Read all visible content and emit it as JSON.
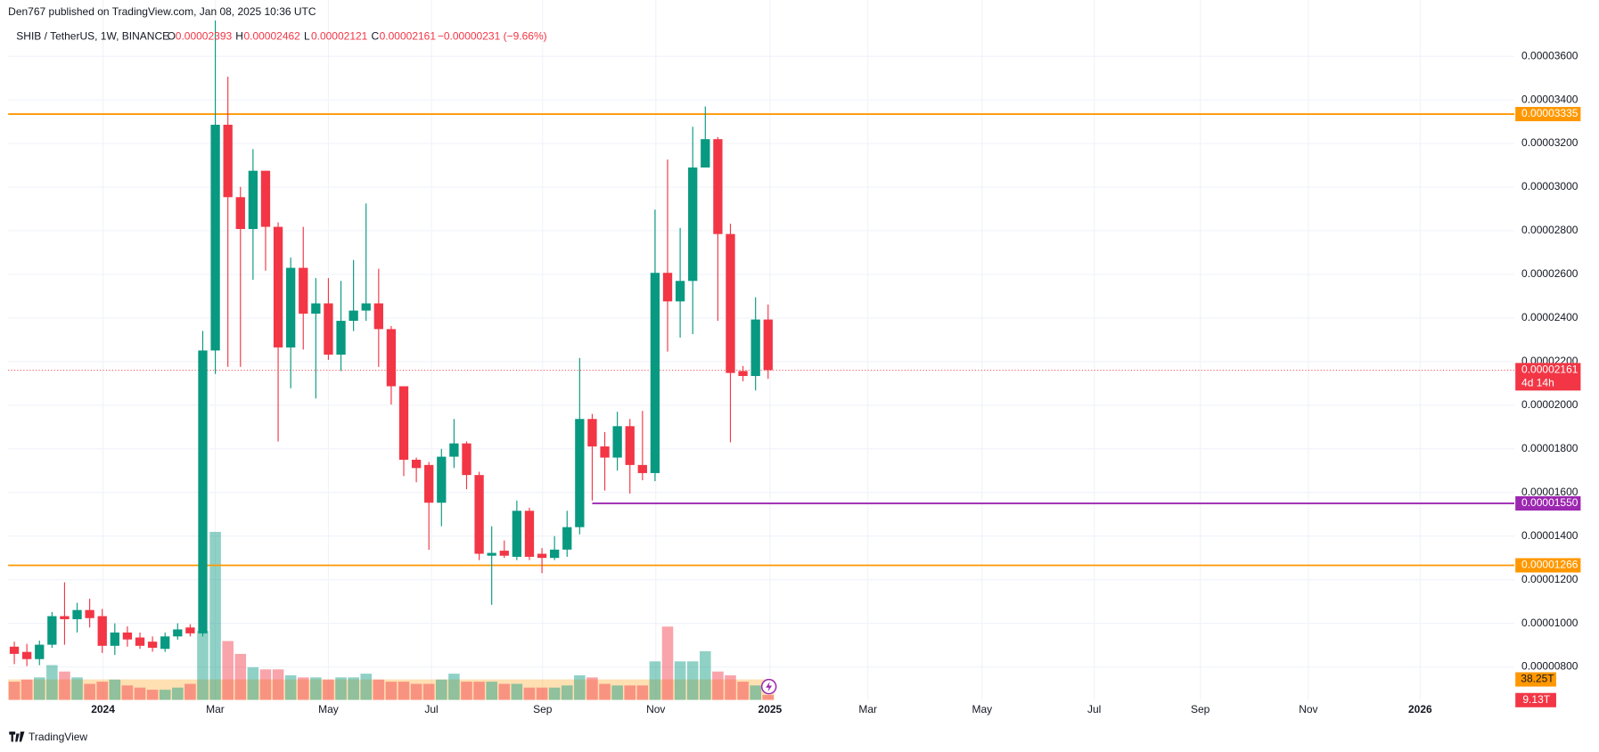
{
  "chart_data": {
    "type": "candlestick",
    "published": "Den767 published on TradingView.com, Jan 08, 2025 10:36 UTC",
    "title": "SHIB / TetherUS, 1W, BINANCE",
    "legend": {
      "o": "O",
      "h": "H",
      "l": "L",
      "c": "C",
      "change": "−0.00000231 (−9.66%)"
    },
    "up_color": "#089981",
    "down_color": "#f23645",
    "categories": [
      null,
      null,
      null,
      null,
      null,
      null,
      null,
      null,
      null,
      null,
      null,
      null,
      null,
      null,
      null,
      null,
      null,
      null,
      null,
      null,
      null,
      null,
      null,
      null,
      null,
      null,
      null,
      null,
      null,
      null,
      null,
      null,
      null,
      null,
      null,
      null,
      null,
      null,
      null,
      null,
      null,
      null,
      null,
      null,
      null,
      null,
      null,
      null,
      null,
      null,
      null,
      null,
      null,
      null,
      null,
      null,
      null,
      null,
      null,
      null,
      null
    ],
    "open": [
      8.93e-06,
      8.69e-06,
      8.36e-06,
      9.02e-06,
      1.033e-05,
      1.019e-05,
      1.061e-05,
      1.033e-05,
      8.97e-06,
      9.58e-06,
      9.35e-06,
      9.16e-06,
      8.83e-06,
      9.4e-06,
      9.81e-06,
      9.54e-06,
      2.251e-05,
      3.286e-05,
      2.954e-05,
      2.808e-05,
      3.075e-05,
      2.818e-05,
      2.265e-05,
      2.63e-05,
      2.42e-05,
      2.467e-05,
      2.232e-05,
      2.387e-05,
      2.434e-05,
      2.467e-05,
      2.349e-05,
      2.087e-05,
      1.75e-05,
      1.726e-05,
      1.553e-05,
      1.764e-05,
      1.825e-05,
      1.68e-05,
      1.31e-05,
      1.333e-05,
      1.305e-05,
      1.516e-05,
      1.319e-05,
      1.3e-05,
      1.338e-05,
      1.441e-05,
      1.937e-05,
      1.811e-05,
      1.76e-05,
      1.904e-05,
      1.726e-05,
      1.689e-05,
      2.607e-05,
      2.476e-05,
      2.57e-05,
      3.09e-05,
      3.22e-05,
      2.785e-05,
      2.157e-05,
      2.134e-05,
      2.393e-05
    ],
    "high": [
      9.16e-06,
      9.06e-06,
      9.21e-06,
      1.052e-05,
      1.188e-05,
      1.094e-05,
      1.113e-05,
      1.066e-05,
      1e-05,
      9.86e-06,
      9.58e-06,
      9.4e-06,
      9.58e-06,
      1e-05,
      9.96e-06,
      2.341e-05,
      3.764e-05,
      3.506e-05,
      3.001e-05,
      3.174e-05,
      3.075e-05,
      2.838e-05,
      2.677e-05,
      2.818e-05,
      2.583e-05,
      2.583e-05,
      2.57e-05,
      2.666e-05,
      2.925e-05,
      2.626e-05,
      2.363e-05,
      2.087e-05,
      1.76e-05,
      1.74e-05,
      1.8e-05,
      1.937e-05,
      1.834e-05,
      1.695e-05,
      1.445e-05,
      1.38e-05,
      1.563e-05,
      1.53e-05,
      1.345e-05,
      1.4e-05,
      1.516e-05,
      2.217e-05,
      1.96e-05,
      1.877e-05,
      1.97e-05,
      1.937e-05,
      1.974e-05,
      2.897e-05,
      3.127e-05,
      2.813e-05,
      3.277e-05,
      3.37e-05,
      3.23e-05,
      2.832e-05,
      2.18e-05,
      2.495e-05,
      2.462e-05
    ],
    "low": [
      8.13e-06,
      8.04e-06,
      8.08e-06,
      8.88e-06,
      9.02e-06,
      9.58e-06,
      9.81e-06,
      8.64e-06,
      8.55e-06,
      8.93e-06,
      8.83e-06,
      8.7e-06,
      8.69e-06,
      9.25e-06,
      9.4e-06,
      9.4e-06,
      2.143e-05,
      2.176e-05,
      2.176e-05,
      2.575e-05,
      2.617e-05,
      1.834e-05,
      2.078e-05,
      2.255e-05,
      2.031e-05,
      2.208e-05,
      2.157e-05,
      2.34e-05,
      2.387e-05,
      2.176e-05,
      2.003e-05,
      1.675e-05,
      1.647e-05,
      1.337e-05,
      1.445e-05,
      1.712e-05,
      1.615e-05,
      1.29e-05,
      1.085e-05,
      1.3e-05,
      1.29e-05,
      1.29e-05,
      1.23e-05,
      1.29e-05,
      1.305e-05,
      1.408e-05,
      1.563e-05,
      1.609e-05,
      1.7e-05,
      1.595e-05,
      1.656e-05,
      1.652e-05,
      2.246e-05,
      2.31e-05,
      2.326e-05,
      3.09e-05,
      2.387e-05,
      1.83e-05,
      2.11e-05,
      2.068e-05,
      2.121e-05
    ],
    "close": [
      8.6e-06,
      8.36e-06,
      9.02e-06,
      1.033e-05,
      1.019e-05,
      1.061e-05,
      1.024e-05,
      8.97e-06,
      9.58e-06,
      9.26e-06,
      8.97e-06,
      8.88e-06,
      9.4e-06,
      9.72e-06,
      9.54e-06,
      2.251e-05,
      3.286e-05,
      2.954e-05,
      2.808e-05,
      3.075e-05,
      2.818e-05,
      2.265e-05,
      2.63e-05,
      2.42e-05,
      2.467e-05,
      2.232e-05,
      2.387e-05,
      2.434e-05,
      2.467e-05,
      2.349e-05,
      2.087e-05,
      1.75e-05,
      1.712e-05,
      1.553e-05,
      1.764e-05,
      1.825e-05,
      1.68e-05,
      1.319e-05,
      1.323e-05,
      1.31e-05,
      1.516e-05,
      1.305e-05,
      1.3e-05,
      1.338e-05,
      1.441e-05,
      1.937e-05,
      1.811e-05,
      1.76e-05,
      1.904e-05,
      1.726e-05,
      1.689e-05,
      2.607e-05,
      2.476e-05,
      2.57e-05,
      3.09e-05,
      3.22e-05,
      2.785e-05,
      2.148e-05,
      2.134e-05,
      2.393e-05,
      2.161e-05
    ],
    "countdown": "4d 14h",
    "xlim": [
      -0.49,
      119.4
    ],
    "xticks": [
      {
        "value": 7.06,
        "label": "2024"
      },
      {
        "value": 15.99,
        "label": "Mar"
      },
      {
        "value": 25.0,
        "label": "May"
      },
      {
        "value": 33.2,
        "label": "Jul"
      },
      {
        "value": 42.05,
        "label": "Sep"
      },
      {
        "value": 51.06,
        "label": "Nov"
      },
      {
        "value": 60.15,
        "label": "2025"
      },
      {
        "value": 67.94,
        "label": "Mar"
      },
      {
        "value": 77.03,
        "label": "May"
      },
      {
        "value": 85.96,
        "label": "Jul"
      },
      {
        "value": 94.4,
        "label": "Sep"
      },
      {
        "value": 103.0,
        "label": "Nov"
      },
      {
        "value": 111.9,
        "label": "2026"
      }
    ],
    "ylim": [
      6.49e-06,
      3.858e-05
    ],
    "yticks": [
      {
        "value": 3.6e-05,
        "label": "0.00003600"
      },
      {
        "value": 3.4e-05,
        "label": "0.00003400"
      },
      {
        "value": 3.2e-05,
        "label": "0.00003200"
      },
      {
        "value": 3e-05,
        "label": "0.00003000"
      },
      {
        "value": 2.8e-05,
        "label": "0.00002800"
      },
      {
        "value": 2.6e-05,
        "label": "0.00002600"
      },
      {
        "value": 2.4e-05,
        "label": "0.00002400"
      },
      {
        "value": 2.2e-05,
        "label": "0.00002200"
      },
      {
        "value": 2e-05,
        "label": "0.00002000"
      },
      {
        "value": 1.8e-05,
        "label": "0.00001800"
      },
      {
        "value": 1.6e-05,
        "label": "0.00001600"
      },
      {
        "value": 1.4e-05,
        "label": "0.00001400"
      },
      {
        "value": 1.2e-05,
        "label": "0.00001200"
      },
      {
        "value": 1e-05,
        "label": "0.00001000"
      },
      {
        "value": 8e-06,
        "label": "0.00000800"
      }
    ],
    "grid": true,
    "levels": [
      {
        "value": 3.335e-05,
        "label": "0.00003335",
        "color": "#ff9800"
      },
      {
        "value": 1.55e-05,
        "label": "0.00001550",
        "color": "#9c27b0"
      },
      {
        "value": 1.266e-05,
        "label": "0.00001266",
        "color": "#ff9800"
      }
    ],
    "volume": {
      "values": [
        34,
        38,
        42,
        65,
        53,
        42,
        30,
        34,
        38,
        27,
        23,
        19,
        19,
        23,
        30,
        129,
        314,
        110,
        86,
        61,
        57,
        57,
        46,
        42,
        42,
        38,
        42,
        42,
        49,
        38,
        34,
        34,
        30,
        30,
        38,
        49,
        34,
        34,
        34,
        30,
        30,
        23,
        23,
        23,
        27,
        46,
        42,
        30,
        27,
        27,
        27,
        72,
        137,
        72,
        72,
        91,
        53,
        46,
        34,
        27,
        9.13
      ],
      "lim": [
        0,
        1308
      ],
      "last_label": "9.13T",
      "ma": {
        "value": 38.25,
        "label": "38.25T",
        "color": "#ff9800"
      }
    },
    "logo": "TradingView"
  }
}
